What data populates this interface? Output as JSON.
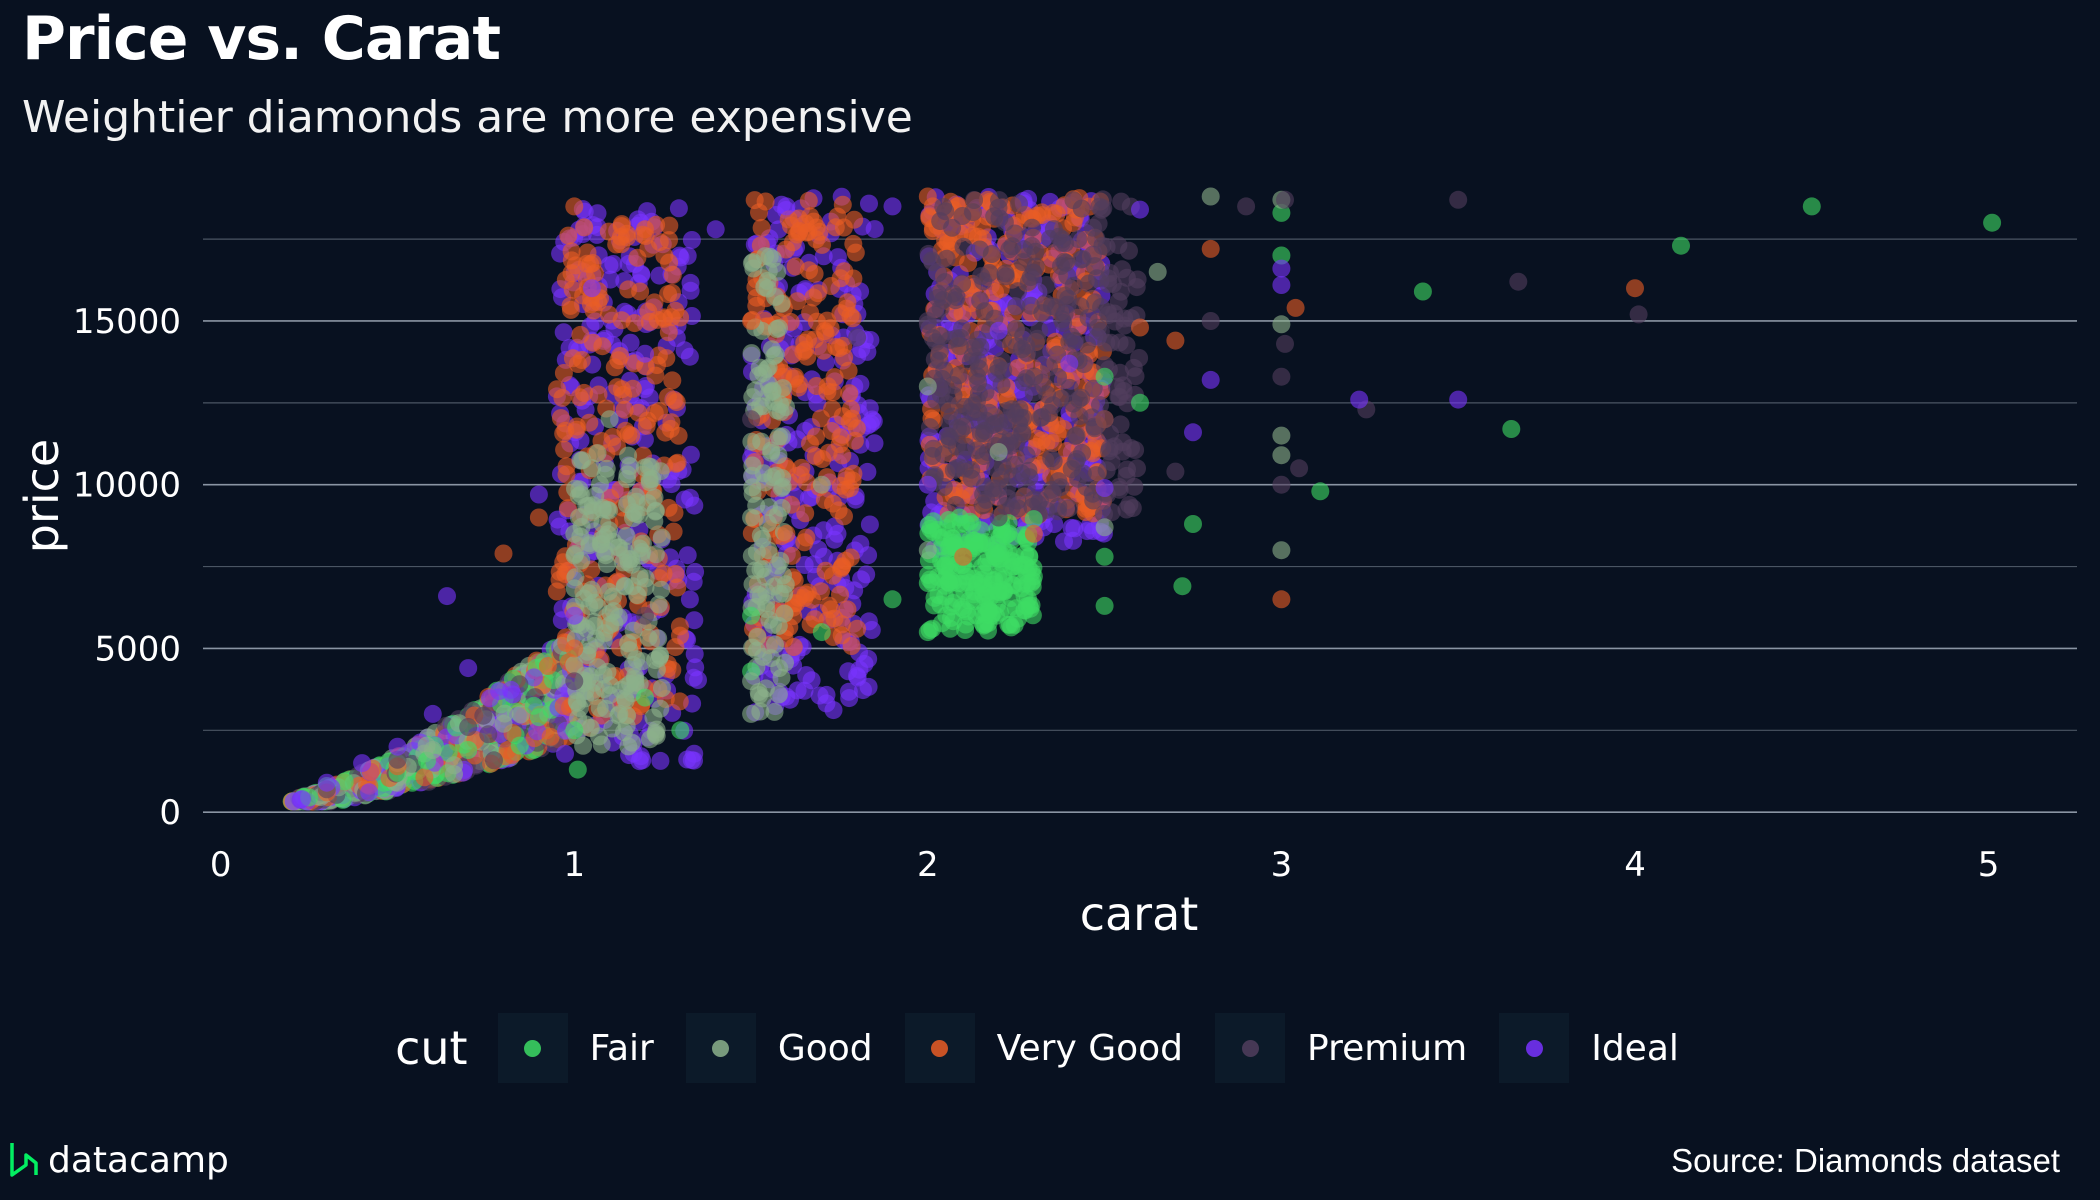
{
  "header": {
    "title": "Price vs. Carat",
    "subtitle": "Weightier diamonds are more expensive"
  },
  "chart_data": {
    "type": "scatter",
    "title": "Price vs. Carat",
    "subtitle": "Weightier diamonds are more expensive",
    "xlabel": "carat",
    "ylabel": "price",
    "xlim": [
      -0.05,
      5.25
    ],
    "ylim": [
      -300,
      19000
    ],
    "x_ticks": [
      0,
      1,
      2,
      3,
      4,
      5
    ],
    "y_ticks": [
      0,
      5000,
      10000,
      15000
    ],
    "grid": true,
    "legend_title": "cut",
    "legend_position": "bottom",
    "series": [
      {
        "name": "Fair",
        "color": "#3ddc64",
        "points": [
          [
            0.25,
            450
          ],
          [
            0.3,
            800
          ],
          [
            0.5,
            1200
          ],
          [
            0.7,
            1900
          ],
          [
            0.9,
            2900
          ],
          [
            1.0,
            2500
          ],
          [
            1.01,
            1300
          ],
          [
            1.2,
            3500
          ],
          [
            1.3,
            2500
          ],
          [
            1.5,
            4300
          ],
          [
            1.5,
            6000
          ],
          [
            1.7,
            5500
          ],
          [
            1.9,
            6500
          ],
          [
            2.0,
            5500
          ],
          [
            2.0,
            7000
          ],
          [
            2.1,
            6200
          ],
          [
            2.2,
            7900
          ],
          [
            2.3,
            7200
          ],
          [
            2.5,
            6300
          ],
          [
            2.5,
            7800
          ],
          [
            2.5,
            13300
          ],
          [
            2.6,
            12500
          ],
          [
            2.72,
            6900
          ],
          [
            2.75,
            8800
          ],
          [
            3.0,
            17000
          ],
          [
            3.0,
            18300
          ],
          [
            3.11,
            9800
          ],
          [
            3.4,
            15900
          ],
          [
            3.65,
            11700
          ],
          [
            4.13,
            17300
          ],
          [
            4.5,
            18500
          ],
          [
            5.01,
            18000
          ]
        ]
      },
      {
        "name": "Good",
        "color": "#8cb18b",
        "points": [
          [
            0.3,
            700
          ],
          [
            0.5,
            1500
          ],
          [
            0.6,
            1900
          ],
          [
            0.8,
            2700
          ],
          [
            1.0,
            4500
          ],
          [
            1.0,
            8500
          ],
          [
            1.1,
            12000
          ],
          [
            1.5,
            4000
          ],
          [
            1.5,
            3000
          ],
          [
            1.5,
            9000
          ],
          [
            1.7,
            10000
          ],
          [
            2.0,
            8000
          ],
          [
            2.0,
            13000
          ],
          [
            2.2,
            11000
          ],
          [
            2.5,
            8700
          ],
          [
            2.65,
            16500
          ],
          [
            2.8,
            18800
          ],
          [
            3.0,
            8000
          ],
          [
            3.0,
            10900
          ],
          [
            3.0,
            11500
          ],
          [
            3.0,
            14900
          ],
          [
            3.0,
            18700
          ]
        ]
      },
      {
        "name": "Very Good",
        "color": "#ea5d24",
        "points": [
          [
            0.3,
            600
          ],
          [
            0.5,
            1400
          ],
          [
            0.8,
            7900
          ],
          [
            0.9,
            9000
          ],
          [
            1.0,
            5000
          ],
          [
            1.0,
            18500
          ],
          [
            1.2,
            17800
          ],
          [
            1.5,
            15000
          ],
          [
            1.6,
            8500
          ],
          [
            1.8,
            5600
          ],
          [
            2.0,
            18800
          ],
          [
            2.1,
            7800
          ],
          [
            2.3,
            8500
          ],
          [
            2.5,
            12000
          ],
          [
            2.6,
            14800
          ],
          [
            2.7,
            14400
          ],
          [
            2.8,
            17200
          ],
          [
            3.0,
            6500
          ],
          [
            3.04,
            15400
          ],
          [
            4.0,
            16000
          ]
        ]
      },
      {
        "name": "Premium",
        "color": "#513e5d",
        "points": [
          [
            0.3,
            700
          ],
          [
            0.5,
            1600
          ],
          [
            0.7,
            2600
          ],
          [
            1.0,
            4000
          ],
          [
            1.2,
            6000
          ],
          [
            1.5,
            12000
          ],
          [
            1.8,
            14500
          ],
          [
            2.0,
            15000
          ],
          [
            2.2,
            9000
          ],
          [
            2.5,
            12000
          ],
          [
            2.7,
            10400
          ],
          [
            2.8,
            15000
          ],
          [
            2.9,
            18500
          ],
          [
            3.0,
            10000
          ],
          [
            3.0,
            13300
          ],
          [
            3.01,
            14300
          ],
          [
            3.01,
            18700
          ],
          [
            3.05,
            10500
          ],
          [
            3.24,
            12300
          ],
          [
            3.5,
            18700
          ],
          [
            3.67,
            16200
          ],
          [
            4.01,
            15200
          ]
        ]
      },
      {
        "name": "Ideal",
        "color": "#7933ff",
        "points": [
          [
            0.23,
            400
          ],
          [
            0.3,
            900
          ],
          [
            0.4,
            1500
          ],
          [
            0.5,
            2000
          ],
          [
            0.6,
            3000
          ],
          [
            0.64,
            6600
          ],
          [
            0.7,
            4400
          ],
          [
            0.9,
            9700
          ],
          [
            1.0,
            6000
          ],
          [
            1.05,
            16000
          ],
          [
            1.2,
            14000
          ],
          [
            1.4,
            17800
          ],
          [
            1.6,
            18500
          ],
          [
            1.9,
            18500
          ],
          [
            2.0,
            10000
          ],
          [
            2.2,
            14700
          ],
          [
            2.4,
            13700
          ],
          [
            2.5,
            9900
          ],
          [
            2.6,
            18400
          ],
          [
            2.75,
            11600
          ],
          [
            2.8,
            13200
          ],
          [
            3.0,
            16100
          ],
          [
            3.0,
            16600
          ],
          [
            3.22,
            12600
          ],
          [
            3.5,
            12600
          ]
        ]
      }
    ],
    "dense_bands": [
      {
        "series": "Ideal",
        "x_range": [
          0.95,
          1.35
        ],
        "y_range": [
          1500,
          18500
        ]
      },
      {
        "series": "Very Good",
        "x_range": [
          0.95,
          1.3
        ],
        "y_range": [
          2500,
          18000
        ]
      },
      {
        "series": "Good",
        "x_range": [
          1.0,
          1.25
        ],
        "y_range": [
          2000,
          11000
        ]
      },
      {
        "series": "Ideal",
        "x_range": [
          1.5,
          1.85
        ],
        "y_range": [
          3000,
          18800
        ]
      },
      {
        "series": "Very Good",
        "x_range": [
          1.5,
          1.8
        ],
        "y_range": [
          5000,
          18700
        ]
      },
      {
        "series": "Good",
        "x_range": [
          1.5,
          1.6
        ],
        "y_range": [
          3000,
          17000
        ]
      },
      {
        "series": "Ideal",
        "x_range": [
          2.0,
          2.5
        ],
        "y_range": [
          8000,
          18800
        ]
      },
      {
        "series": "Very Good",
        "x_range": [
          2.0,
          2.5
        ],
        "y_range": [
          9000,
          18800
        ]
      },
      {
        "series": "Premium",
        "x_range": [
          2.0,
          2.6
        ],
        "y_range": [
          9000,
          18800
        ]
      },
      {
        "series": "Fair",
        "x_range": [
          2.0,
          2.3
        ],
        "y_range": [
          5500,
          9000
        ]
      }
    ],
    "ramp": {
      "carat_min": 0.2,
      "carat_max": 1.0
    }
  },
  "legend": {
    "title": "cut",
    "items": [
      {
        "label": "Fair",
        "color": "#3ddc64"
      },
      {
        "label": "Good",
        "color": "#8cb18b"
      },
      {
        "label": "Very Good",
        "color": "#ea5d24"
      },
      {
        "label": "Premium",
        "color": "#513e5d"
      },
      {
        "label": "Ideal",
        "color": "#7933ff"
      }
    ]
  },
  "footer": {
    "brand": "datacamp",
    "brand_icon": "datacamp-logo-icon",
    "source": "Source: Diamonds dataset"
  }
}
